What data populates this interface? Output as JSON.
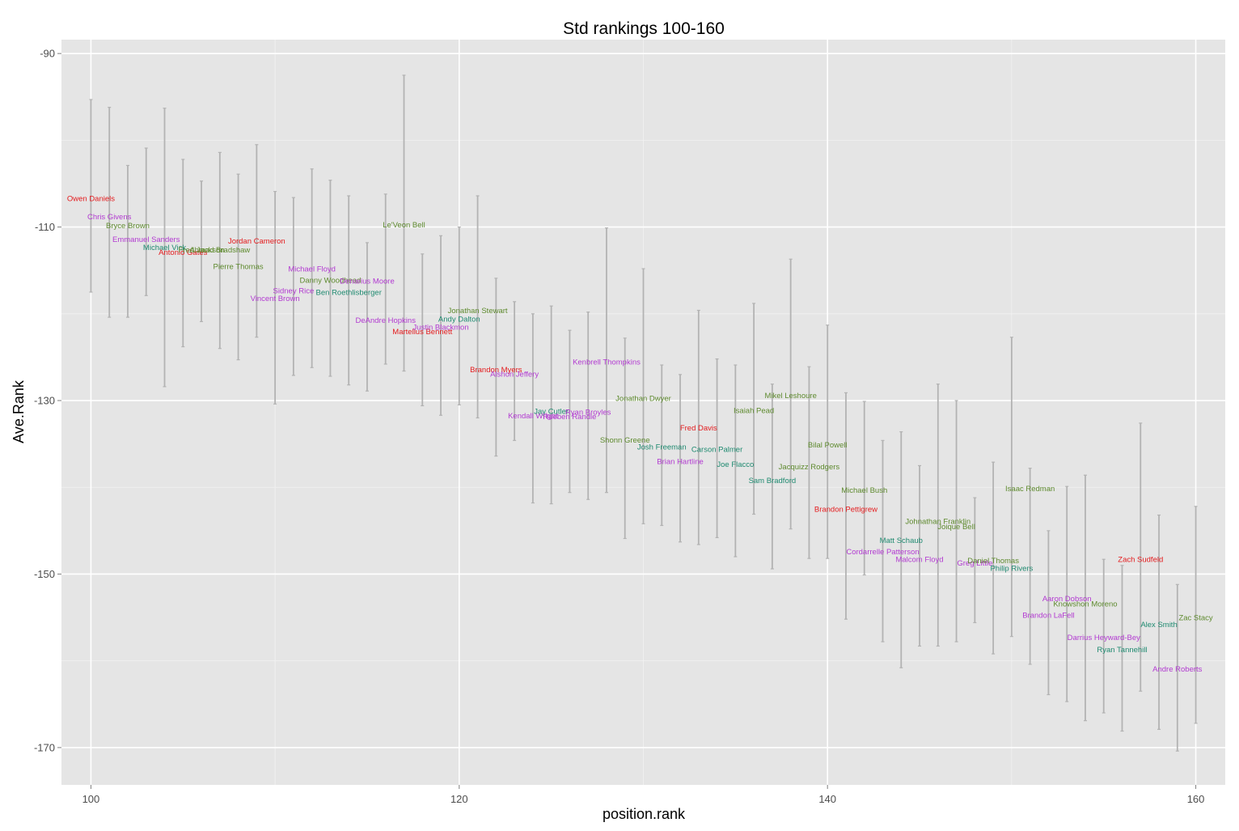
{
  "chart_data": {
    "type": "scatter",
    "title": "Std rankings 100-160",
    "xlabel": "position.rank",
    "ylabel": "Ave.Rank",
    "xlim": [
      98.4,
      161.6
    ],
    "ylim": [
      -174.3,
      -88.4
    ],
    "xticks": [
      100,
      120,
      140,
      160
    ],
    "yticks": [
      -90,
      -110,
      -130,
      -150,
      -170
    ],
    "grid": true,
    "legend": "none",
    "colors": {
      "panel": "#e5e5e5",
      "grid_major": "#ffffff",
      "grid_minor": "#f2f2f2",
      "errorbar": "#b3b3b3",
      "red": "#e41a1c",
      "purple": "#b23ad1",
      "green": "#5e8a2e",
      "teal": "#1f8a70"
    },
    "points": [
      {
        "x": 100,
        "y": -106.7,
        "lo": -117.5,
        "hi": -95.3,
        "label": "Owen Daniels",
        "color": "red"
      },
      {
        "x": 101,
        "y": -108.8,
        "lo": -120.4,
        "hi": -96.2,
        "label": "Chris Givens",
        "color": "purple"
      },
      {
        "x": 102,
        "y": -109.8,
        "lo": -120.4,
        "hi": -102.9,
        "label": "Bryce Brown",
        "color": "green"
      },
      {
        "x": 103,
        "y": -111.4,
        "lo": -117.9,
        "hi": -100.9,
        "label": "Emmanuel Sanders",
        "color": "purple"
      },
      {
        "x": 104,
        "y": -112.3,
        "lo": -128.4,
        "hi": -96.3,
        "label": "Michael Vick",
        "color": "teal"
      },
      {
        "x": 105,
        "y": -112.9,
        "lo": -123.8,
        "hi": -102.2,
        "label": "Antonio Gates",
        "color": "red"
      },
      {
        "x": 106,
        "y": -112.6,
        "lo": -120.9,
        "hi": -104.7,
        "label": "Fred Jackson",
        "color": "green"
      },
      {
        "x": 107,
        "y": -112.6,
        "lo": -124.0,
        "hi": -101.4,
        "label": "Ahmad Bradshaw",
        "color": "green"
      },
      {
        "x": 108,
        "y": -114.5,
        "lo": -125.3,
        "hi": -103.9,
        "label": "Pierre Thomas",
        "color": "green"
      },
      {
        "x": 109,
        "y": -111.6,
        "lo": -122.7,
        "hi": -100.5,
        "label": "Jordan Cameron",
        "color": "red"
      },
      {
        "x": 110,
        "y": -118.2,
        "lo": -130.4,
        "hi": -105.9,
        "label": "Vincent Brown",
        "color": "purple"
      },
      {
        "x": 111,
        "y": -117.3,
        "lo": -127.1,
        "hi": -106.6,
        "label": "Sidney Rice",
        "color": "purple"
      },
      {
        "x": 112,
        "y": -114.8,
        "lo": -126.2,
        "hi": -103.3,
        "label": "Michael Floyd",
        "color": "purple"
      },
      {
        "x": 113,
        "y": -116.1,
        "lo": -127.2,
        "hi": -104.6,
        "label": "Danny Woodhead",
        "color": "green"
      },
      {
        "x": 114,
        "y": -117.5,
        "lo": -128.2,
        "hi": -106.4,
        "label": "Ben Roethlisberger",
        "color": "teal"
      },
      {
        "x": 115,
        "y": -116.2,
        "lo": -128.9,
        "hi": -111.8,
        "label": "Denarius Moore",
        "color": "purple"
      },
      {
        "x": 116,
        "y": -120.7,
        "lo": -125.8,
        "hi": -106.2,
        "label": "DeAndre Hopkins",
        "color": "purple"
      },
      {
        "x": 117,
        "y": -109.7,
        "lo": -126.6,
        "hi": -92.5,
        "label": "Le'Veon Bell",
        "color": "green"
      },
      {
        "x": 118,
        "y": -122.0,
        "lo": -130.6,
        "hi": -113.1,
        "label": "Martellus Bennett",
        "color": "red"
      },
      {
        "x": 119,
        "y": -121.5,
        "lo": -131.7,
        "hi": -111.0,
        "label": "Justin Blackmon",
        "color": "purple"
      },
      {
        "x": 120,
        "y": -120.6,
        "lo": -130.5,
        "hi": -110.0,
        "label": "Andy Dalton",
        "color": "teal"
      },
      {
        "x": 121,
        "y": -119.6,
        "lo": -132.0,
        "hi": -106.4,
        "label": "Jonathan Stewart",
        "color": "green"
      },
      {
        "x": 122,
        "y": -126.4,
        "lo": -136.4,
        "hi": -115.9,
        "label": "Brandon Myers",
        "color": "red"
      },
      {
        "x": 123,
        "y": -126.9,
        "lo": -134.6,
        "hi": -118.6,
        "label": "Alshon Jeffery",
        "color": "purple"
      },
      {
        "x": 124,
        "y": -131.7,
        "lo": -141.8,
        "hi": -120.0,
        "label": "Kendall Wright",
        "color": "purple"
      },
      {
        "x": 125,
        "y": -131.2,
        "lo": -141.9,
        "hi": -119.1,
        "label": "Jay Cutler",
        "color": "teal"
      },
      {
        "x": 126,
        "y": -131.8,
        "lo": -140.6,
        "hi": -121.9,
        "label": "Rueben Randle",
        "color": "purple"
      },
      {
        "x": 127,
        "y": -131.3,
        "lo": -141.4,
        "hi": -119.8,
        "label": "Ryan Broyles",
        "color": "purple"
      },
      {
        "x": 128,
        "y": -125.5,
        "lo": -140.6,
        "hi": -110.1,
        "label": "Kenbrell Thompkins",
        "color": "purple"
      },
      {
        "x": 129,
        "y": -134.5,
        "lo": -145.9,
        "hi": -122.8,
        "label": "Shonn Greene",
        "color": "green"
      },
      {
        "x": 130,
        "y": -129.7,
        "lo": -144.2,
        "hi": -114.8,
        "label": "Jonathan Dwyer",
        "color": "green"
      },
      {
        "x": 131,
        "y": -135.3,
        "lo": -144.4,
        "hi": -125.9,
        "label": "Josh Freeman",
        "color": "teal"
      },
      {
        "x": 132,
        "y": -137.0,
        "lo": -146.3,
        "hi": -127.0,
        "label": "Brian Hartline",
        "color": "purple"
      },
      {
        "x": 133,
        "y": -133.1,
        "lo": -146.6,
        "hi": -119.6,
        "label": "Fred Davis",
        "color": "red"
      },
      {
        "x": 134,
        "y": -135.6,
        "lo": -145.8,
        "hi": -125.2,
        "label": "Carson Palmer",
        "color": "teal"
      },
      {
        "x": 135,
        "y": -137.3,
        "lo": -148.0,
        "hi": -125.9,
        "label": "Joe Flacco",
        "color": "teal"
      },
      {
        "x": 136,
        "y": -131.1,
        "lo": -143.1,
        "hi": -118.8,
        "label": "Isaiah Pead",
        "color": "green"
      },
      {
        "x": 137,
        "y": -139.2,
        "lo": -149.4,
        "hi": -128.1,
        "label": "Sam Bradford",
        "color": "teal"
      },
      {
        "x": 138,
        "y": -129.4,
        "lo": -144.8,
        "hi": -113.7,
        "label": "Mikel Leshoure",
        "color": "green"
      },
      {
        "x": 139,
        "y": -137.6,
        "lo": -148.2,
        "hi": -126.1,
        "label": "Jacquizz Rodgers",
        "color": "green"
      },
      {
        "x": 140,
        "y": -135.1,
        "lo": -148.2,
        "hi": -121.3,
        "label": "Bilal Powell",
        "color": "green"
      },
      {
        "x": 141,
        "y": -142.5,
        "lo": -155.2,
        "hi": -129.1,
        "label": "Brandon Pettigrew",
        "color": "red"
      },
      {
        "x": 142,
        "y": -140.3,
        "lo": -150.1,
        "hi": -130.1,
        "label": "Michael Bush",
        "color": "green"
      },
      {
        "x": 143,
        "y": -147.4,
        "lo": -157.8,
        "hi": -134.6,
        "label": "Cordarrelle Patterson",
        "color": "purple"
      },
      {
        "x": 144,
        "y": -146.1,
        "lo": -160.8,
        "hi": -133.6,
        "label": "Matt Schaub",
        "color": "teal"
      },
      {
        "x": 145,
        "y": -148.3,
        "lo": -158.3,
        "hi": -137.5,
        "label": "Malcom Floyd",
        "color": "purple"
      },
      {
        "x": 146,
        "y": -143.9,
        "lo": -158.3,
        "hi": -128.1,
        "label": "Johnathan Franklin",
        "color": "green"
      },
      {
        "x": 147,
        "y": -144.5,
        "lo": -157.8,
        "hi": -130.0,
        "label": "Joique Bell",
        "color": "green"
      },
      {
        "x": 148,
        "y": -148.7,
        "lo": -155.6,
        "hi": -141.2,
        "label": "Greg Little",
        "color": "purple"
      },
      {
        "x": 149,
        "y": -148.4,
        "lo": -159.2,
        "hi": -137.1,
        "label": "Daniel Thomas",
        "color": "green"
      },
      {
        "x": 150,
        "y": -149.3,
        "lo": -157.2,
        "hi": -122.7,
        "label": "Philip Rivers",
        "color": "teal"
      },
      {
        "x": 151,
        "y": -140.1,
        "lo": -160.4,
        "hi": -137.8,
        "label": "Isaac Redman",
        "color": "green"
      },
      {
        "x": 152,
        "y": -154.7,
        "lo": -163.9,
        "hi": -145.0,
        "label": "Brandon LaFell",
        "color": "purple"
      },
      {
        "x": 153,
        "y": -152.8,
        "lo": -164.7,
        "hi": -139.9,
        "label": "Aaron Dobson",
        "color": "purple"
      },
      {
        "x": 154,
        "y": -153.4,
        "lo": -166.9,
        "hi": -138.6,
        "label": "Knowshon Moreno",
        "color": "green"
      },
      {
        "x": 155,
        "y": -157.3,
        "lo": -166.0,
        "hi": -148.3,
        "label": "Darrius Heyward-Bey",
        "color": "purple"
      },
      {
        "x": 156,
        "y": -158.7,
        "lo": -168.1,
        "hi": -149.0,
        "label": "Ryan Tannehill",
        "color": "teal"
      },
      {
        "x": 157,
        "y": -148.3,
        "lo": -163.5,
        "hi": -132.6,
        "label": "Zach Sudfeld",
        "color": "red"
      },
      {
        "x": 158,
        "y": -155.8,
        "lo": -167.9,
        "hi": -143.2,
        "label": "Alex Smith",
        "color": "teal"
      },
      {
        "x": 159,
        "y": -160.9,
        "lo": -170.4,
        "hi": -151.2,
        "label": "Andre Roberts",
        "color": "purple"
      },
      {
        "x": 160,
        "y": -155.0,
        "lo": -167.2,
        "hi": -142.2,
        "label": "Zac Stacy",
        "color": "green"
      }
    ]
  }
}
